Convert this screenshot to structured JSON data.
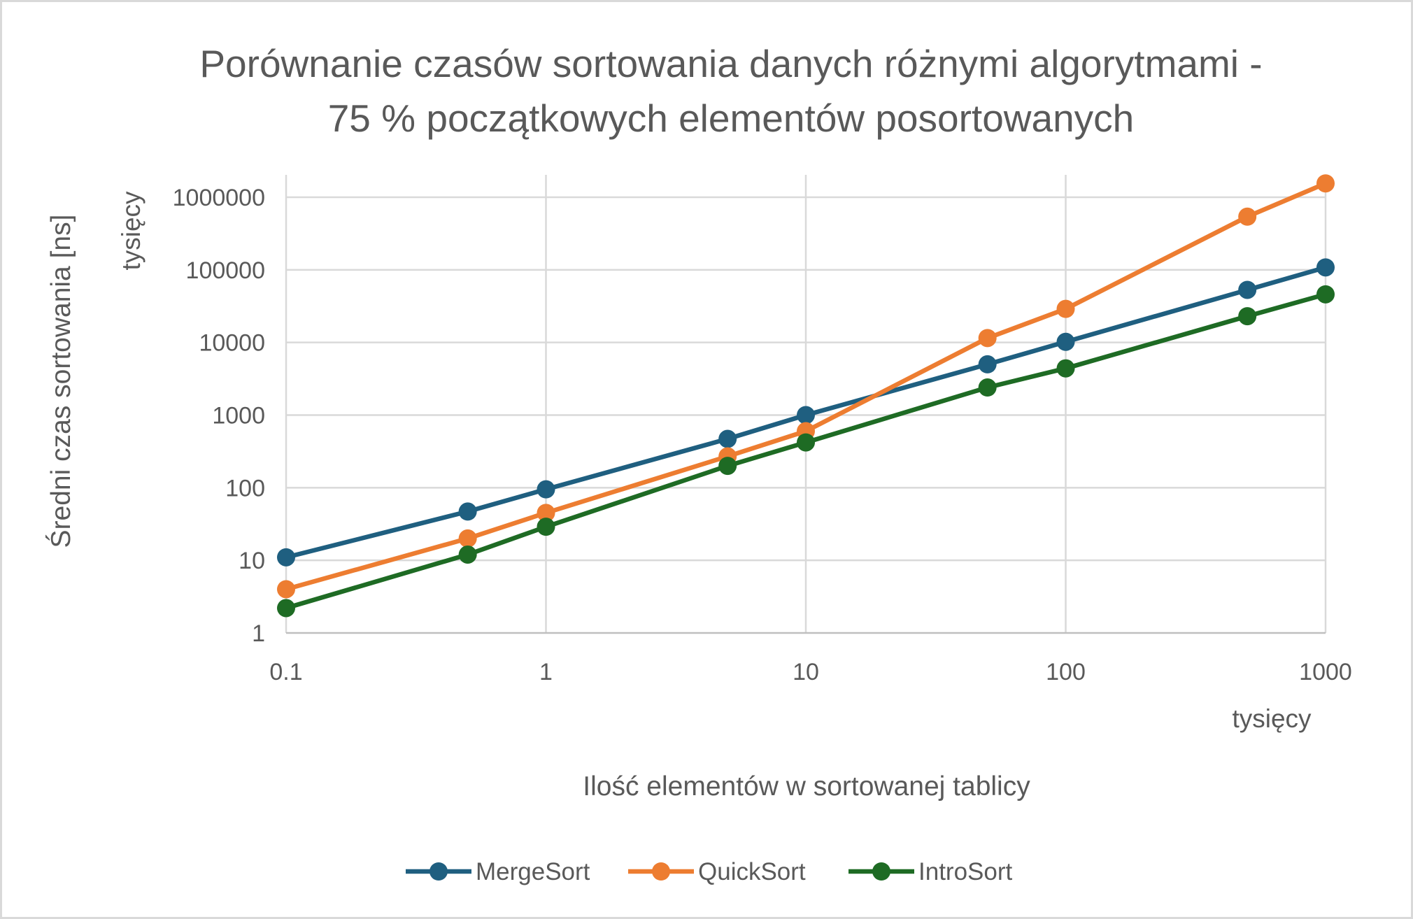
{
  "chart_data": {
    "type": "line",
    "title": "Porównanie czasów sortowania danych różnymi algorytmami - 75 % początkowych elementów posortowanych",
    "title_lines": [
      "Porównanie czasów sortowania danych różnymi algorytmami -",
      "75 % początkowych elementów posortowanych"
    ],
    "xlabel": "Ilość elementów w sortowanej tablicy",
    "ylabel": "Średni czas sortowania [ns]",
    "x_unit_label": "tysięcy",
    "y_unit_label": "tysięcy",
    "x_scale": "log",
    "y_scale": "log",
    "xlim": [
      0.1,
      1000
    ],
    "ylim": [
      1,
      1000000
    ],
    "x_tick_labels": [
      "0.1",
      "1",
      "10",
      "100",
      "1000"
    ],
    "y_tick_labels": [
      "1",
      "10",
      "100",
      "1000",
      "10000",
      "100000",
      "1000000"
    ],
    "grid": true,
    "legend_position": "bottom",
    "x": [
      0.1,
      0.5,
      1,
      5,
      10,
      50,
      100,
      500,
      1000
    ],
    "series": [
      {
        "name": "MergeSort",
        "color": "#1f5f80",
        "values": [
          11,
          47,
          95,
          470,
          1000,
          5000,
          10200,
          53000,
          108000
        ]
      },
      {
        "name": "QuickSort",
        "color": "#ed7d31",
        "values": [
          4,
          20,
          45,
          270,
          600,
          11500,
          29000,
          540000,
          1550000
        ]
      },
      {
        "name": "IntroSort",
        "color": "#1e6b24",
        "values": [
          2.2,
          12,
          29,
          200,
          420,
          2400,
          4400,
          23000,
          46000
        ]
      }
    ]
  }
}
